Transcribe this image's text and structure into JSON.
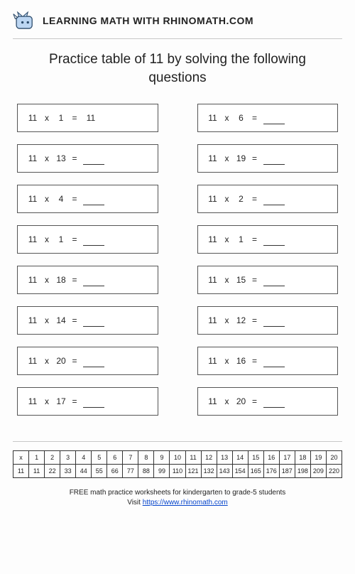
{
  "header": {
    "site_name": "LEARNING MATH WITH RHINOMATH.COM"
  },
  "title": "Practice table of 11 by solving the following questions",
  "questions": [
    {
      "a": "11",
      "op": "x",
      "b": "1",
      "eq": "=",
      "ans": "11"
    },
    {
      "a": "11",
      "op": "x",
      "b": "6",
      "eq": "=",
      "ans": ""
    },
    {
      "a": "11",
      "op": "x",
      "b": "13",
      "eq": "=",
      "ans": ""
    },
    {
      "a": "11",
      "op": "x",
      "b": "19",
      "eq": "=",
      "ans": ""
    },
    {
      "a": "11",
      "op": "x",
      "b": "4",
      "eq": "=",
      "ans": ""
    },
    {
      "a": "11",
      "op": "x",
      "b": "2",
      "eq": "=",
      "ans": ""
    },
    {
      "a": "11",
      "op": "x",
      "b": "1",
      "eq": "=",
      "ans": ""
    },
    {
      "a": "11",
      "op": "x",
      "b": "1",
      "eq": "=",
      "ans": ""
    },
    {
      "a": "11",
      "op": "x",
      "b": "18",
      "eq": "=",
      "ans": ""
    },
    {
      "a": "11",
      "op": "x",
      "b": "15",
      "eq": "=",
      "ans": ""
    },
    {
      "a": "11",
      "op": "x",
      "b": "14",
      "eq": "=",
      "ans": ""
    },
    {
      "a": "11",
      "op": "x",
      "b": "12",
      "eq": "=",
      "ans": ""
    },
    {
      "a": "11",
      "op": "x",
      "b": "20",
      "eq": "=",
      "ans": ""
    },
    {
      "a": "11",
      "op": "x",
      "b": "16",
      "eq": "=",
      "ans": ""
    },
    {
      "a": "11",
      "op": "x",
      "b": "17",
      "eq": "=",
      "ans": ""
    },
    {
      "a": "11",
      "op": "x",
      "b": "20",
      "eq": "=",
      "ans": ""
    }
  ],
  "reference": {
    "header": [
      "x",
      "1",
      "2",
      "3",
      "4",
      "5",
      "6",
      "7",
      "8",
      "9",
      "10",
      "11",
      "12",
      "13",
      "14",
      "15",
      "16",
      "17",
      "18",
      "19",
      "20"
    ],
    "row": [
      "11",
      "11",
      "22",
      "33",
      "44",
      "55",
      "66",
      "77",
      "88",
      "99",
      "110",
      "121",
      "132",
      "143",
      "154",
      "165",
      "176",
      "187",
      "198",
      "209",
      "220"
    ]
  },
  "footer": {
    "line1": "FREE math practice worksheets for kindergarten to grade-5 students",
    "visit_prefix": "Visit ",
    "link_text": "https://www.rhinomath.com"
  }
}
